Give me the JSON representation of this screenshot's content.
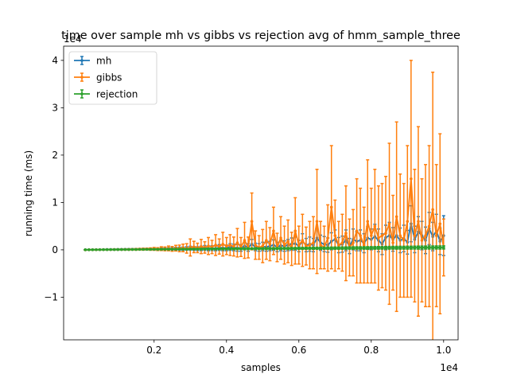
{
  "chart_data": {
    "type": "line",
    "title": "time over sample mh vs gibbs vs rejection avg of hmm_sample_three",
    "xlabel": "samples",
    "ylabel": "running time (ms)",
    "x_offset_label": "1e4",
    "y_offset_label": "1e4",
    "xlim": [
      -0.05,
      1.04
    ],
    "ylim": [
      -1.9,
      4.3
    ],
    "x_ticks": [
      0.2,
      0.4,
      0.6,
      0.8,
      1.0
    ],
    "x_tick_labels": [
      "0.2",
      "0.4",
      "0.6",
      "0.8",
      "1.0"
    ],
    "y_ticks": [
      -1,
      0,
      1,
      2,
      3,
      4
    ],
    "y_tick_labels": [
      "−1",
      "0",
      "1",
      "2",
      "3",
      "4"
    ],
    "legend_position": "top-left",
    "grid": false,
    "x": [
      0.01,
      0.02,
      0.03,
      0.04,
      0.05,
      0.06,
      0.07,
      0.08,
      0.09,
      0.1,
      0.11,
      0.12,
      0.13,
      0.14,
      0.15,
      0.16,
      0.17,
      0.18,
      0.19,
      0.2,
      0.21,
      0.22,
      0.23,
      0.24,
      0.25,
      0.26,
      0.27,
      0.28,
      0.29,
      0.3,
      0.31,
      0.32,
      0.33,
      0.34,
      0.35,
      0.36,
      0.37,
      0.38,
      0.39,
      0.4,
      0.41,
      0.42,
      0.43,
      0.44,
      0.45,
      0.46,
      0.47,
      0.48,
      0.49,
      0.5,
      0.51,
      0.52,
      0.53,
      0.54,
      0.55,
      0.56,
      0.57,
      0.58,
      0.59,
      0.6,
      0.61,
      0.62,
      0.63,
      0.64,
      0.65,
      0.66,
      0.67,
      0.68,
      0.69,
      0.7,
      0.71,
      0.72,
      0.73,
      0.74,
      0.75,
      0.76,
      0.77,
      0.78,
      0.79,
      0.8,
      0.81,
      0.82,
      0.83,
      0.84,
      0.85,
      0.86,
      0.87,
      0.88,
      0.89,
      0.9,
      0.91,
      0.92,
      0.93,
      0.94,
      0.95,
      0.96,
      0.97,
      0.98,
      0.99,
      1.0
    ],
    "series": [
      {
        "name": "mh",
        "color": "#1f77b4",
        "values": [
          0.001,
          0.002,
          0.003,
          0.003,
          0.004,
          0.005,
          0.006,
          0.006,
          0.007,
          0.008,
          0.009,
          0.01,
          0.01,
          0.011,
          0.012,
          0.013,
          0.014,
          0.015,
          0.015,
          0.016,
          0.017,
          0.018,
          0.02,
          0.02,
          0.021,
          0.022,
          0.024,
          0.024,
          0.03,
          0.035,
          0.03,
          0.025,
          0.03,
          0.04,
          0.03,
          0.035,
          0.03,
          0.05,
          0.04,
          0.04,
          0.06,
          0.05,
          0.04,
          0.04,
          0.08,
          0.05,
          0.12,
          0.06,
          0.05,
          0.07,
          0.06,
          0.08,
          0.1,
          0.06,
          0.09,
          0.08,
          0.1,
          0.12,
          0.13,
          0.08,
          0.18,
          0.1,
          0.12,
          0.1,
          0.25,
          0.15,
          0.12,
          0.1,
          0.18,
          0.22,
          0.1,
          0.12,
          0.2,
          0.08,
          0.22,
          0.18,
          0.2,
          0.14,
          0.25,
          0.22,
          0.28,
          0.2,
          0.12,
          0.26,
          0.3,
          0.22,
          0.3,
          0.2,
          0.24,
          0.16,
          0.55,
          0.22,
          0.38,
          0.3,
          0.2,
          0.45,
          0.28,
          0.4,
          0.18,
          0.3
        ],
        "errors": [
          0.002,
          0.003,
          0.004,
          0.005,
          0.006,
          0.007,
          0.008,
          0.009,
          0.01,
          0.011,
          0.012,
          0.013,
          0.014,
          0.015,
          0.016,
          0.017,
          0.018,
          0.019,
          0.02,
          0.02,
          0.022,
          0.024,
          0.025,
          0.026,
          0.028,
          0.03,
          0.032,
          0.034,
          0.036,
          0.04,
          0.04,
          0.04,
          0.045,
          0.05,
          0.05,
          0.05,
          0.05,
          0.06,
          0.06,
          0.06,
          0.07,
          0.07,
          0.07,
          0.07,
          0.08,
          0.08,
          0.1,
          0.08,
          0.08,
          0.09,
          0.09,
          0.1,
          0.11,
          0.1,
          0.11,
          0.11,
          0.12,
          0.13,
          0.14,
          0.12,
          0.16,
          0.14,
          0.15,
          0.14,
          0.2,
          0.16,
          0.16,
          0.15,
          0.18,
          0.2,
          0.16,
          0.17,
          0.22,
          0.16,
          0.22,
          0.2,
          0.22,
          0.2,
          0.24,
          0.22,
          0.26,
          0.24,
          0.22,
          0.26,
          0.28,
          0.25,
          0.28,
          0.26,
          0.28,
          0.25,
          0.38,
          0.28,
          0.32,
          0.3,
          0.28,
          0.34,
          0.3,
          0.35,
          0.28,
          0.42
        ]
      },
      {
        "name": "gibbs",
        "color": "#ff7f0e",
        "values": [
          0.0,
          0.001,
          0.002,
          0.002,
          0.003,
          0.004,
          0.004,
          0.005,
          0.006,
          0.006,
          0.007,
          0.008,
          0.008,
          0.009,
          0.01,
          0.012,
          0.013,
          0.015,
          0.016,
          0.02,
          0.015,
          0.025,
          0.02,
          0.03,
          0.02,
          0.035,
          0.03,
          0.04,
          0.03,
          0.05,
          0.06,
          0.04,
          0.07,
          0.05,
          0.08,
          0.06,
          0.1,
          0.07,
          0.12,
          0.08,
          0.1,
          0.07,
          0.15,
          0.06,
          0.2,
          0.05,
          0.6,
          0.1,
          0.05,
          0.08,
          0.2,
          0.12,
          0.4,
          0.05,
          0.25,
          0.1,
          0.18,
          0.02,
          0.4,
          0.1,
          0.2,
          0.08,
          0.1,
          0.15,
          0.6,
          0.1,
          0.05,
          0.25,
          0.9,
          0.3,
          0.1,
          0.15,
          0.35,
          0.05,
          0.15,
          0.4,
          0.3,
          0.1,
          0.6,
          0.3,
          0.5,
          0.25,
          0.3,
          0.35,
          0.55,
          0.15,
          0.7,
          0.3,
          0.2,
          0.6,
          1.5,
          0.3,
          0.6,
          0.2,
          0.3,
          0.5,
          0.85,
          0.3,
          0.55,
          0.05
        ],
        "errors": [
          0.002,
          0.003,
          0.004,
          0.004,
          0.005,
          0.006,
          0.006,
          0.007,
          0.008,
          0.008,
          0.009,
          0.01,
          0.012,
          0.014,
          0.016,
          0.018,
          0.02,
          0.02,
          0.025,
          0.03,
          0.03,
          0.04,
          0.04,
          0.05,
          0.05,
          0.06,
          0.07,
          0.08,
          0.1,
          0.18,
          0.12,
          0.1,
          0.15,
          0.12,
          0.18,
          0.14,
          0.22,
          0.16,
          0.25,
          0.18,
          0.22,
          0.2,
          0.3,
          0.2,
          0.38,
          0.22,
          0.6,
          0.3,
          0.25,
          0.35,
          0.4,
          0.35,
          0.5,
          0.3,
          0.45,
          0.4,
          0.45,
          0.35,
          0.7,
          0.4,
          0.55,
          0.4,
          0.5,
          0.55,
          1.1,
          0.5,
          0.45,
          0.7,
          1.3,
          0.75,
          0.5,
          0.6,
          1.0,
          0.6,
          0.7,
          1.1,
          1.0,
          0.8,
          1.3,
          1.0,
          1.2,
          1.1,
          1.1,
          1.2,
          1.7,
          1.0,
          2.0,
          1.3,
          1.2,
          1.6,
          2.5,
          1.4,
          2.0,
          1.3,
          1.5,
          1.7,
          2.9,
          1.5,
          1.9,
          0.6
        ]
      },
      {
        "name": "rejection",
        "color": "#2ca02c",
        "values": [
          0.001,
          0.002,
          0.002,
          0.003,
          0.003,
          0.004,
          0.004,
          0.005,
          0.005,
          0.006,
          0.006,
          0.007,
          0.007,
          0.008,
          0.008,
          0.009,
          0.009,
          0.01,
          0.01,
          0.011,
          0.011,
          0.012,
          0.012,
          0.013,
          0.013,
          0.014,
          0.014,
          0.015,
          0.015,
          0.016,
          0.016,
          0.017,
          0.017,
          0.018,
          0.018,
          0.019,
          0.019,
          0.02,
          0.02,
          0.021,
          0.021,
          0.022,
          0.022,
          0.023,
          0.023,
          0.024,
          0.024,
          0.025,
          0.025,
          0.026,
          0.026,
          0.027,
          0.027,
          0.028,
          0.028,
          0.029,
          0.029,
          0.03,
          0.03,
          0.031,
          0.031,
          0.032,
          0.032,
          0.033,
          0.033,
          0.034,
          0.034,
          0.035,
          0.035,
          0.036,
          0.036,
          0.037,
          0.037,
          0.038,
          0.038,
          0.039,
          0.039,
          0.04,
          0.04,
          0.041,
          0.041,
          0.042,
          0.042,
          0.043,
          0.043,
          0.044,
          0.044,
          0.045,
          0.045,
          0.046,
          0.046,
          0.047,
          0.047,
          0.048,
          0.048,
          0.049,
          0.049,
          0.05,
          0.05,
          0.051
        ],
        "errors": [
          0.001,
          0.001,
          0.002,
          0.002,
          0.002,
          0.003,
          0.003,
          0.003,
          0.004,
          0.004,
          0.004,
          0.005,
          0.005,
          0.005,
          0.006,
          0.006,
          0.006,
          0.007,
          0.007,
          0.007,
          0.008,
          0.008,
          0.008,
          0.009,
          0.009,
          0.009,
          0.01,
          0.01,
          0.01,
          0.011,
          0.011,
          0.011,
          0.012,
          0.012,
          0.012,
          0.013,
          0.013,
          0.013,
          0.014,
          0.014,
          0.014,
          0.015,
          0.015,
          0.015,
          0.016,
          0.016,
          0.016,
          0.017,
          0.017,
          0.017,
          0.018,
          0.018,
          0.018,
          0.019,
          0.019,
          0.019,
          0.02,
          0.02,
          0.02,
          0.021,
          0.021,
          0.021,
          0.022,
          0.022,
          0.022,
          0.023,
          0.023,
          0.023,
          0.024,
          0.024,
          0.024,
          0.025,
          0.025,
          0.025,
          0.026,
          0.026,
          0.026,
          0.027,
          0.027,
          0.027,
          0.028,
          0.028,
          0.028,
          0.029,
          0.029,
          0.029,
          0.03,
          0.03,
          0.03,
          0.031,
          0.031,
          0.031,
          0.032,
          0.032,
          0.032,
          0.033,
          0.033,
          0.033,
          0.034,
          0.034
        ]
      }
    ]
  }
}
